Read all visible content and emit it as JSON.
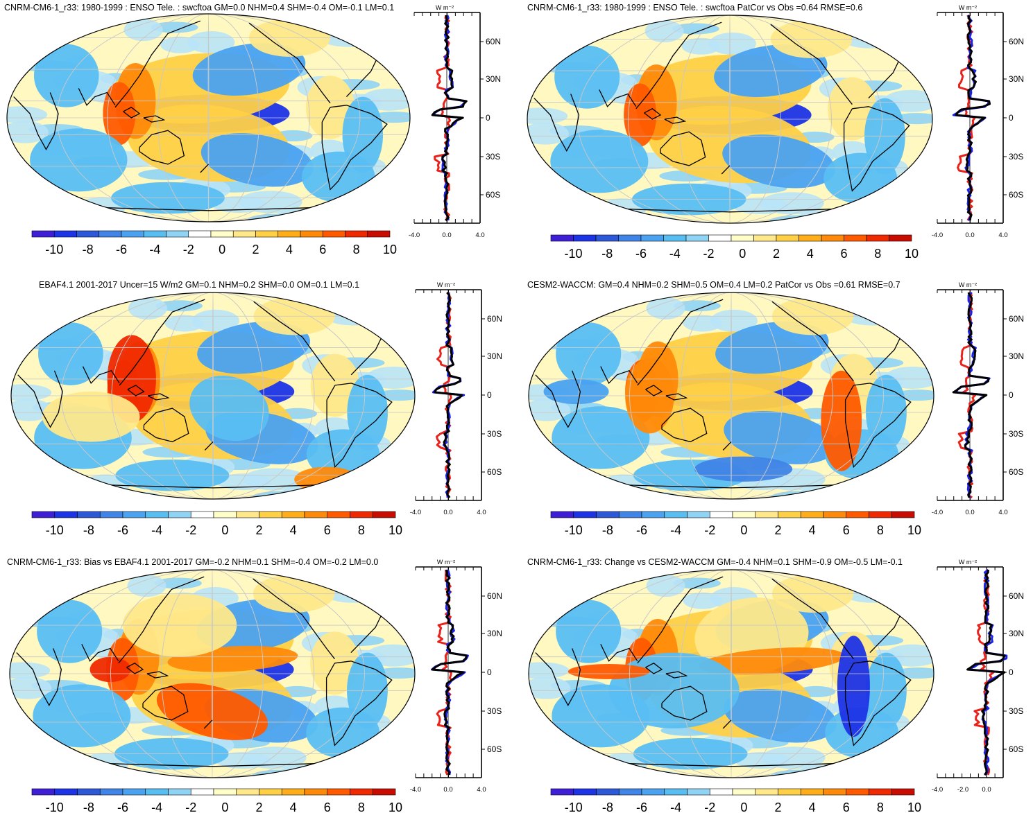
{
  "colors": {
    "colorbar": [
      "#3f1fd6",
      "#1c33e6",
      "#2d58d8",
      "#3f84e6",
      "#4aa2f0",
      "#58bef2",
      "#8fd3f5",
      "#ffffff",
      "#fffdc8",
      "#ffe88a",
      "#ffd046",
      "#ffae1a",
      "#ff8a0a",
      "#ff5a00",
      "#f02a00",
      "#c90c00"
    ],
    "blue_line": "#1a22e6",
    "red_line": "#e8231b",
    "black_line": "#000000",
    "land_line": "#000000"
  },
  "colorbar_labels": [
    "-10",
    "-8",
    "-6",
    "-4",
    "-2",
    "0",
    "2",
    "4",
    "6",
    "8",
    "10"
  ],
  "profile_lat_labels": [
    "60N",
    "30N",
    "0",
    "30S",
    "60S"
  ],
  "profile_unit": "W m⁻²",
  "panels": [
    {
      "title": "CNRM-CM6-1_r33: 1980-1999 : ENSO Tele. : swcftoa GM=0.0 NHM=0.4 SHM=-0.4 OM=-0.1 LM=0.1",
      "x_ticks": [
        "-4.0",
        "0.0",
        "4.0"
      ]
    },
    {
      "title": "CNRM-CM6-1_r33: 1980-1999 : ENSO Tele. : swcftoa PatCor vs Obs =0.64 RMSE=0.6",
      "x_ticks": [
        "-4.0",
        "0.0",
        "4.0"
      ]
    },
    {
      "title": "EBAF4.1 2001-2017 Uncer=15 W/m2 GM=0.1 NHM=0.2 SHM=0.0 OM=0.1 LM=0.1",
      "x_ticks": [
        "-4.0",
        "0.0",
        "4.0"
      ]
    },
    {
      "title": "CESM2-WACCM: GM=0.4 NHM=0.2 SHM=0.5 OM=0.4 LM=0.2 PatCor vs Obs =0.61 RMSE=0.7",
      "x_ticks": [
        "-4.0",
        "0.0",
        "4.0"
      ]
    },
    {
      "title": "CNRM-CM6-1_r33: Bias vs EBAF4.1 2001-2017 GM=-0.2 NHM=0.1 SHM=-0.4 OM=-0.2 LM=0.0",
      "x_ticks": [
        "-4.0",
        "0.0",
        "4.0"
      ]
    },
    {
      "title": "CNRM-CM6-1_r33: Change vs CESM2-WACCM GM=-0.4 NHM=0.1 SHM=-0.9 OM=-0.5 LM=-0.1",
      "x_ticks": [
        "-4.0",
        "-2.0",
        "0.0"
      ]
    }
  ]
}
